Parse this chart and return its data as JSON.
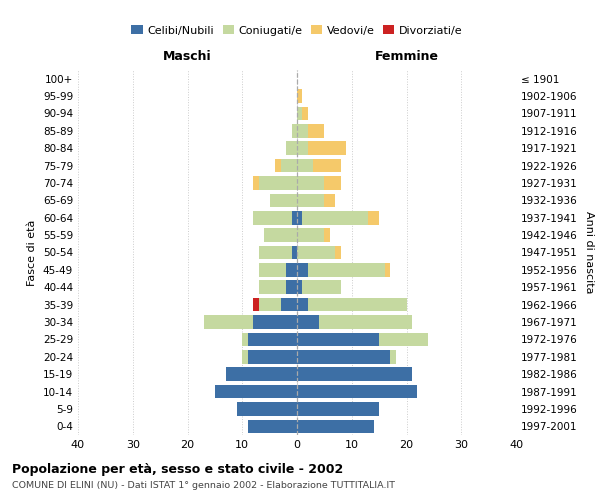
{
  "age_groups": [
    "0-4",
    "5-9",
    "10-14",
    "15-19",
    "20-24",
    "25-29",
    "30-34",
    "35-39",
    "40-44",
    "45-49",
    "50-54",
    "55-59",
    "60-64",
    "65-69",
    "70-74",
    "75-79",
    "80-84",
    "85-89",
    "90-94",
    "95-99",
    "100+"
  ],
  "birth_years": [
    "1997-2001",
    "1992-1996",
    "1987-1991",
    "1982-1986",
    "1977-1981",
    "1972-1976",
    "1967-1971",
    "1962-1966",
    "1957-1961",
    "1952-1956",
    "1947-1951",
    "1942-1946",
    "1937-1941",
    "1932-1936",
    "1927-1931",
    "1922-1926",
    "1917-1921",
    "1912-1916",
    "1907-1911",
    "1902-1906",
    "≤ 1901"
  ],
  "colors": {
    "celibi": "#3d6fa5",
    "coniugati": "#c5d9a0",
    "vedovi": "#f5c96a",
    "divorziati": "#cc2222"
  },
  "males": {
    "celibi": [
      9,
      11,
      15,
      13,
      9,
      9,
      8,
      3,
      2,
      2,
      1,
      0,
      1,
      0,
      0,
      0,
      0,
      0,
      0,
      0,
      0
    ],
    "coniugati": [
      0,
      0,
      0,
      0,
      1,
      1,
      9,
      4,
      5,
      5,
      6,
      6,
      7,
      5,
      7,
      3,
      2,
      1,
      0,
      0,
      0
    ],
    "vedovi": [
      0,
      0,
      0,
      0,
      0,
      0,
      0,
      0,
      0,
      0,
      0,
      0,
      0,
      0,
      1,
      1,
      0,
      0,
      0,
      0,
      0
    ],
    "divorziati": [
      0,
      0,
      0,
      0,
      0,
      0,
      0,
      1,
      0,
      0,
      0,
      0,
      0,
      0,
      0,
      0,
      0,
      0,
      0,
      0,
      0
    ]
  },
  "females": {
    "nubili": [
      14,
      15,
      22,
      21,
      17,
      15,
      4,
      2,
      1,
      2,
      0,
      0,
      1,
      0,
      0,
      0,
      0,
      0,
      0,
      0,
      0
    ],
    "coniugate": [
      0,
      0,
      0,
      0,
      1,
      9,
      17,
      18,
      7,
      14,
      7,
      5,
      12,
      5,
      5,
      3,
      2,
      2,
      1,
      0,
      0
    ],
    "vedove": [
      0,
      0,
      0,
      0,
      0,
      0,
      0,
      0,
      0,
      1,
      1,
      1,
      2,
      2,
      3,
      5,
      7,
      3,
      1,
      1,
      0
    ],
    "divorziate": [
      0,
      0,
      0,
      0,
      0,
      0,
      0,
      0,
      0,
      0,
      0,
      0,
      0,
      0,
      0,
      0,
      0,
      0,
      0,
      0,
      0
    ]
  },
  "xlim": [
    -40,
    40
  ],
  "xticks": [
    -40,
    -30,
    -20,
    -10,
    0,
    10,
    20,
    30,
    40
  ],
  "xticklabels": [
    "40",
    "30",
    "20",
    "10",
    "0",
    "10",
    "20",
    "30",
    "40"
  ],
  "title": "Popolazione per età, sesso e stato civile - 2002",
  "subtitle": "COMUNE DI ELINI (NU) - Dati ISTAT 1° gennaio 2002 - Elaborazione TUTTITALIA.IT",
  "ylabel_left": "Fasce di età",
  "ylabel_right": "Anni di nascita",
  "maschi_label": "Maschi",
  "femmine_label": "Femmine",
  "legend_labels": [
    "Celibi/Nubili",
    "Coniugati/e",
    "Vedovi/e",
    "Divorziati/e"
  ],
  "background_color": "#ffffff",
  "grid_color": "#cccccc"
}
